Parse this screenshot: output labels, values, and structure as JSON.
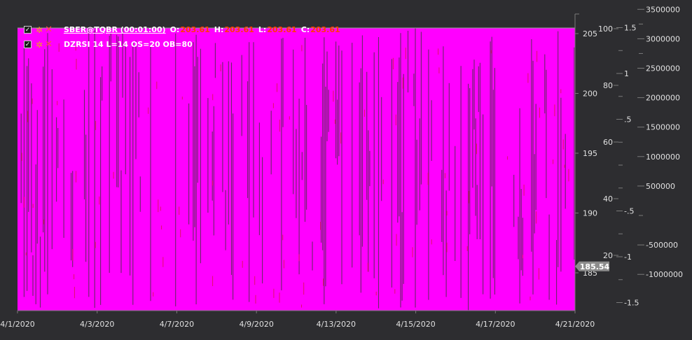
{
  "app": {
    "background": "#2d2d30",
    "plot_fill": "#ff00ff",
    "bar_shadow": "#5a2a5a",
    "axis_color": "#7a7a7a",
    "text_color": "#e0e0e0",
    "ohlc_value_color": "#ff3a00"
  },
  "legend": {
    "rows": [
      {
        "title": "SBER@TQBR (00:01:00)",
        "underlined": true,
        "ohlc": [
          {
            "label": "O:",
            "value": "203.61"
          },
          {
            "label": "H:",
            "value": "203.61"
          },
          {
            "label": "L:",
            "value": "203.61"
          },
          {
            "label": "C:",
            "value": "203.61"
          }
        ]
      },
      {
        "title": "DZRSI 14 L=14 OS=20 OB=80",
        "underlined": false,
        "ohlc": []
      }
    ]
  },
  "chart_data": {
    "type": "bar",
    "x": {
      "tick_labels": [
        "4/1/2020",
        "4/3/2020",
        "4/7/2020",
        "4/9/2020",
        "4/13/2020",
        "4/15/2020",
        "4/17/2020",
        "4/21/2020"
      ]
    },
    "axes": [
      {
        "name": "price",
        "ticks": [
          "205",
          "200",
          "195",
          "190",
          "185"
        ]
      },
      {
        "name": "rsi",
        "ticks": [
          "100",
          "80",
          "60",
          "40",
          "20"
        ]
      },
      {
        "name": "oscillator",
        "ticks": [
          "1.5",
          "1",
          ".5",
          "-.5",
          "-1",
          "-1.5"
        ]
      },
      {
        "name": "volume",
        "ticks": [
          "3500000",
          "3000000",
          "2500000",
          "2000000",
          "1500000",
          "1000000",
          "500000",
          "-500000",
          "-1000000"
        ]
      }
    ],
    "last_price": "185.54"
  }
}
